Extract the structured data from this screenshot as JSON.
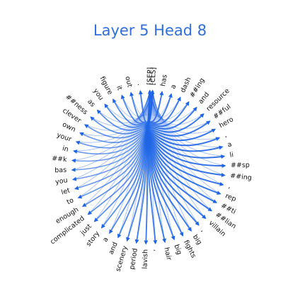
{
  "title": "Layer 5 Head 8",
  "accent_color": "#1f66e6",
  "tokens": [
    "[CLS]",
    "has",
    "a",
    "dash",
    "##ing",
    "and",
    "resource",
    "##ful",
    "hero",
    ",",
    "a",
    "li",
    "##sp",
    "##ing",
    ",",
    "rep",
    "##ti",
    "##lian",
    "villain",
    ",",
    "big",
    "fights",
    "big",
    "hair",
    ",",
    "lavish",
    "period",
    "scenery",
    "and",
    "a",
    "story",
    "just",
    "complicated",
    "enough",
    "to",
    "let",
    "you",
    "bas",
    "##k",
    "in",
    "your",
    "own",
    "clever",
    "##ness",
    "as",
    "you",
    "figure",
    "it",
    "out",
    ".",
    "[SEP]"
  ],
  "attention_targets": [
    0,
    50
  ]
}
